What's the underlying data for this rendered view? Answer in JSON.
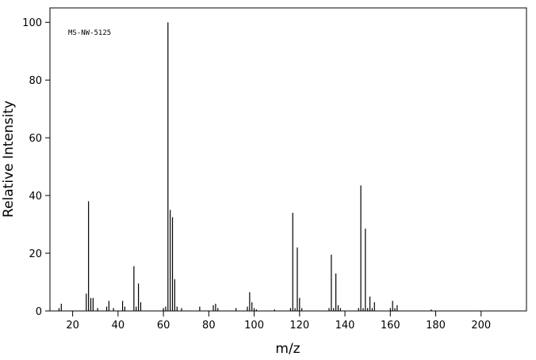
{
  "chart_data": {
    "type": "stem",
    "annotation": "MS-NW-5125",
    "x_label": "m/z",
    "y_label": "Relative Intensity",
    "x": [
      14,
      15,
      26,
      27,
      28,
      29,
      31,
      35,
      36,
      38,
      42,
      43,
      47,
      48,
      49,
      50,
      60,
      61,
      62,
      63,
      64,
      65,
      66,
      68,
      76,
      82,
      83,
      84,
      92,
      97,
      98,
      99,
      100,
      101,
      109,
      116,
      117,
      118,
      119,
      120,
      121,
      133,
      134,
      135,
      136,
      137,
      138,
      146,
      147,
      148,
      149,
      150,
      151,
      152,
      153,
      160,
      161,
      162,
      163,
      178
    ],
    "values": [
      1,
      2.5,
      6,
      38,
      4.5,
      4.5,
      1,
      1.5,
      3.5,
      1,
      3.5,
      1.5,
      15.5,
      1.5,
      9.5,
      3,
      1,
      1.5,
      100,
      35,
      32.5,
      11,
      1.5,
      1,
      1.5,
      2,
      2.5,
      1,
      1,
      1.5,
      6.5,
      3,
      1,
      0.5,
      0.5,
      1,
      34,
      1,
      22,
      4.5,
      1,
      1,
      19.5,
      1,
      13,
      2,
      1,
      1,
      43.5,
      1,
      28.5,
      1,
      5,
      1,
      3,
      1,
      3.5,
      1,
      2,
      0.5
    ],
    "color": "#000000",
    "xlim": [
      10,
      220
    ],
    "xticks": [
      20,
      40,
      60,
      80,
      100,
      120,
      140,
      160,
      180,
      200
    ],
    "ylim": [
      0,
      105
    ],
    "yticks": [
      0,
      20,
      40,
      60,
      80,
      100
    ]
  }
}
